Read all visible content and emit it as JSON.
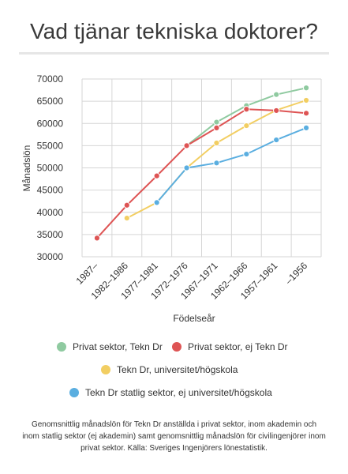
{
  "page": {
    "title": "Vad tjänar tekniska doktorer?",
    "caption": "Genomsnittlig månadslön för Tekn Dr anställda i privat sektor, inom akademin och inom statlig sektor (ej akademin) samt genomsnittlig månadslön för civilingenjörer inom privat sektor. Källa: Sveriges Ingenjörers lönestatistik."
  },
  "chart_data": {
    "type": "line",
    "xlabel": "Födelseår",
    "ylabel": "Månadslön",
    "categories": [
      "1987–",
      "1982–1986",
      "1977–1981",
      "1972–1976",
      "1967–1971",
      "1962–1966",
      "1957–1961",
      "–1956"
    ],
    "ylim": [
      30000,
      70000
    ],
    "yticks": [
      30000,
      35000,
      40000,
      45000,
      50000,
      55000,
      60000,
      65000,
      70000
    ],
    "grid": true,
    "legend_position": "bottom",
    "series": [
      {
        "name": "Privat sektor, Tekn Dr",
        "color": "#8fcaa0",
        "values": [
          null,
          null,
          null,
          55000,
          60300,
          64000,
          66500,
          68000
        ]
      },
      {
        "name": "Tekn Dr, universitet/högskola",
        "color": "#f2ce62",
        "values": [
          null,
          38700,
          42200,
          50000,
          55600,
          59500,
          63000,
          65200
        ]
      },
      {
        "name": "Tekn Dr statlig sektor, ej universitet/högskola",
        "color": "#5aaee0",
        "values": [
          null,
          null,
          42200,
          50000,
          51100,
          53100,
          56300,
          59000
        ]
      },
      {
        "name": "Privat sektor, ej Tekn Dr",
        "color": "#de5454",
        "values": [
          34200,
          41600,
          48200,
          55000,
          59000,
          63200,
          62900,
          62300
        ]
      }
    ]
  },
  "legend": {
    "items": [
      {
        "label": "Privat sektor, Tekn Dr",
        "color": "#8fcaa0"
      },
      {
        "label": "Privat sektor, ej Tekn Dr",
        "color": "#de5454"
      },
      {
        "label": "Tekn Dr, universitet/högskola",
        "color": "#f2ce62"
      },
      {
        "label": "Tekn Dr statlig sektor, ej universitet/högskola",
        "color": "#5aaee0"
      }
    ]
  }
}
